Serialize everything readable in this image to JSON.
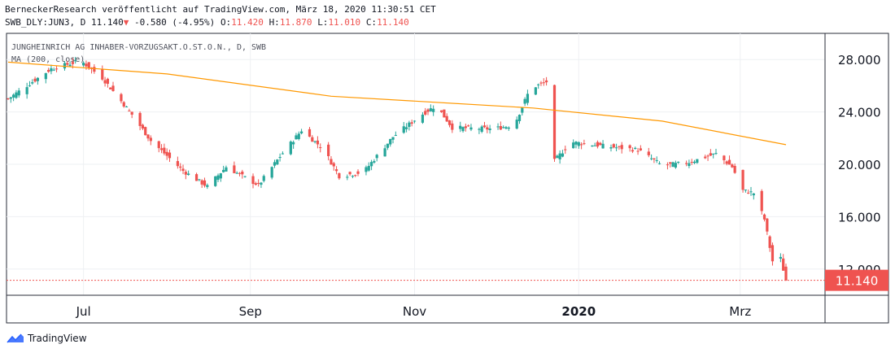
{
  "header": {
    "line1": "BerneckerResearch veröffentlicht auf TradingView.com, März 18, 2020 11:30:51 CET",
    "symbol": "SWB_DLY:JUN3, D",
    "last": "11.140",
    "arrow": "▼",
    "change": "-0.580 (-4.95%)",
    "o_label": "O:",
    "o": "11.420",
    "h_label": "H:",
    "h": "11.870",
    "l_label": "L:",
    "l": "11.010",
    "c_label": "C:",
    "c": "11.140"
  },
  "footer": {
    "brand": "TradingView"
  },
  "colors": {
    "up": "#26a69a",
    "down": "#ef5350",
    "ma": "#ff9800",
    "grid": "#eef0f3",
    "lastLine": "#ef5350"
  },
  "chart_data": {
    "type": "candlestick",
    "title": "JUNGHEINRICH AG INHABER-VORZUGSAKT.O.ST.O.N., D, SWB",
    "indicator": "MA (200, close)",
    "ylim": [
      10.0,
      30.0
    ],
    "yticks": [
      12,
      16,
      20,
      24,
      28
    ],
    "ytick_labels": [
      "12.000",
      "16.000",
      "20.000",
      "24.000",
      "28.000"
    ],
    "xtick_labels": [
      "Jul",
      "Sep",
      "Nov",
      "2020",
      "Mrz"
    ],
    "xtick_dates": [
      "2019-07-01",
      "2019-09-01",
      "2019-11-01",
      "2020-01-01",
      "2020-03-01"
    ],
    "date_range": [
      "2019-06-03",
      "2020-03-18"
    ],
    "last_price": 11.14,
    "last_price_label": "11.140",
    "key_points": [
      {
        "date": "2019-06-03",
        "close": 25.0
      },
      {
        "date": "2019-06-19",
        "close": 27.3
      },
      {
        "date": "2019-06-30",
        "close": 27.9
      },
      {
        "date": "2019-07-08",
        "close": 26.6
      },
      {
        "date": "2019-07-19",
        "close": 23.8
      },
      {
        "date": "2019-07-26",
        "close": 21.8
      },
      {
        "date": "2019-08-07",
        "close": 19.5
      },
      {
        "date": "2019-08-16",
        "close": 18.3
      },
      {
        "date": "2019-08-23",
        "close": 19.8
      },
      {
        "date": "2019-09-04",
        "close": 18.4
      },
      {
        "date": "2019-09-12",
        "close": 20.6
      },
      {
        "date": "2019-09-20",
        "close": 22.6
      },
      {
        "date": "2019-09-28",
        "close": 21.2
      },
      {
        "date": "2019-10-04",
        "close": 19.1
      },
      {
        "date": "2019-10-13",
        "close": 19.4
      },
      {
        "date": "2019-10-24",
        "close": 22.1
      },
      {
        "date": "2019-11-03",
        "close": 23.7
      },
      {
        "date": "2019-11-09",
        "close": 24.5
      },
      {
        "date": "2019-11-15",
        "close": 22.8
      },
      {
        "date": "2019-11-30",
        "close": 22.7
      },
      {
        "date": "2019-12-08",
        "close": 23.0
      },
      {
        "date": "2019-12-14",
        "close": 25.8
      },
      {
        "date": "2019-12-20",
        "close": 26.3
      },
      {
        "date": "2019-12-22",
        "close": 20.0
      },
      {
        "date": "2019-12-29",
        "close": 21.7
      },
      {
        "date": "2020-01-10",
        "close": 21.4
      },
      {
        "date": "2020-01-23",
        "close": 21.1
      },
      {
        "date": "2020-02-01",
        "close": 19.9
      },
      {
        "date": "2020-02-10",
        "close": 20.1
      },
      {
        "date": "2020-02-21",
        "close": 20.8
      },
      {
        "date": "2020-02-27",
        "close": 19.8
      },
      {
        "date": "2020-03-02",
        "close": 18.0
      },
      {
        "date": "2020-03-06",
        "close": 17.8
      },
      {
        "date": "2020-03-10",
        "close": 15.8
      },
      {
        "date": "2020-03-13",
        "close": 12.6
      },
      {
        "date": "2020-03-16",
        "close": 12.8
      },
      {
        "date": "2020-03-18",
        "close": 11.14
      }
    ],
    "ma_points": [
      {
        "date": "2019-06-03",
        "value": 27.8
      },
      {
        "date": "2019-08-01",
        "value": 26.9
      },
      {
        "date": "2019-10-01",
        "value": 25.2
      },
      {
        "date": "2019-12-15",
        "value": 24.3
      },
      {
        "date": "2020-02-01",
        "value": 23.3
      },
      {
        "date": "2020-03-18",
        "value": 21.5
      }
    ]
  }
}
